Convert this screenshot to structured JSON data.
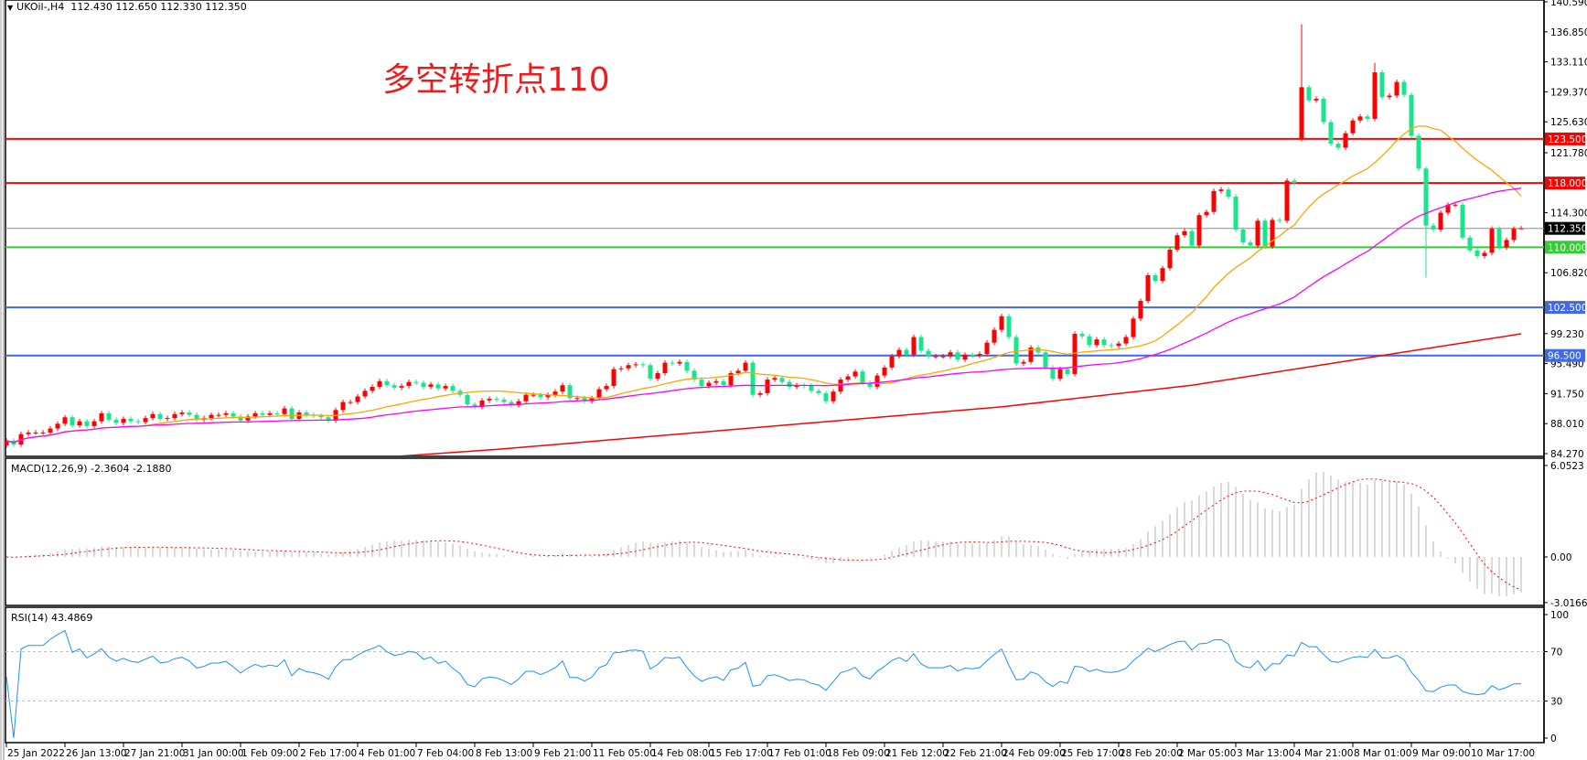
{
  "window": {
    "symbol_header": "UKOil-,H4",
    "ohlc": "112.430 112.650 112.330 112.350"
  },
  "annotation": "多空转折点110",
  "chart_data": {
    "type": "candlestick",
    "ylim": [
      84.27,
      140.59
    ],
    "price_ticks": [
      "140.590",
      "136.850",
      "133.110",
      "129.370",
      "125.630",
      "121.780",
      "114.300",
      "106.820",
      "99.230",
      "95.490",
      "91.750",
      "88.010",
      "84.270"
    ],
    "x_tick_labels": [
      "25 Jan 2022",
      "26 Jan 13:00",
      "27 Jan 21:00",
      "31 Jan 00:00",
      "1 Feb 09:00",
      "2 Feb 17:00",
      "4 Feb 01:00",
      "7 Feb 04:00",
      "8 Feb 13:00",
      "9 Feb 21:00",
      "11 Feb 05:00",
      "14 Feb 08:00",
      "15 Feb 17:00",
      "17 Feb 01:00",
      "18 Feb 09:00",
      "21 Feb 12:00",
      "22 Feb 21:00",
      "24 Feb 09:00",
      "25 Feb 17:00",
      "28 Feb 20:00",
      "2 Mar 05:00",
      "3 Mar 13:00",
      "4 Mar 21:00",
      "8 Mar 01:00",
      "9 Mar 09:00",
      "10 Mar 17:00"
    ],
    "bars_per_x_tick": 8,
    "up_color": "#ff0000",
    "down_color": "#19e68c",
    "first_open": 85.3,
    "closes": [
      85.9,
      85.4,
      86.7,
      86.9,
      86.9,
      86.9,
      87.4,
      88.0,
      88.8,
      87.8,
      88.3,
      87.7,
      88.3,
      89.3,
      88.5,
      88.1,
      88.6,
      88.3,
      88.2,
      88.7,
      89.2,
      88.6,
      88.7,
      89.2,
      89.4,
      89.1,
      88.5,
      88.7,
      89.1,
      89.1,
      89.3,
      88.9,
      88.4,
      88.9,
      89.3,
      89.1,
      89.3,
      89.2,
      89.9,
      88.6,
      89.4,
      89.1,
      89.0,
      88.8,
      88.4,
      89.7,
      90.7,
      90.7,
      91.4,
      92.1,
      92.6,
      93.3,
      92.8,
      92.5,
      92.7,
      93.2,
      93.1,
      92.6,
      92.9,
      92.4,
      92.7,
      92.1,
      91.6,
      90.4,
      90.1,
      90.9,
      91.1,
      91.0,
      90.7,
      90.3,
      90.8,
      91.6,
      91.6,
      91.3,
      91.6,
      92.0,
      92.8,
      91.2,
      91.2,
      90.8,
      91.2,
      92.3,
      92.7,
      94.8,
      94.9,
      95.3,
      95.4,
      95.3,
      93.6,
      94.3,
      95.6,
      95.5,
      95.7,
      94.6,
      93.5,
      92.7,
      93.1,
      93.3,
      92.8,
      94.3,
      94.6,
      95.6,
      91.6,
      91.8,
      93.5,
      93.7,
      93.2,
      92.6,
      92.8,
      92.7,
      92.1,
      91.8,
      90.8,
      92.0,
      93.5,
      93.9,
      94.5,
      93.1,
      92.6,
      94.0,
      95.0,
      96.4,
      97.2,
      96.6,
      98.8,
      97.1,
      96.4,
      96.4,
      96.4,
      96.9,
      96.0,
      96.6,
      96.5,
      96.7,
      98.1,
      99.7,
      101.4,
      98.8,
      95.5,
      95.7,
      97.5,
      96.9,
      95.0,
      93.6,
      94.8,
      94.2,
      99.2,
      98.9,
      97.8,
      98.5,
      97.8,
      97.7,
      98.0,
      98.8,
      101.1,
      103.3,
      106.5,
      105.8,
      107.4,
      109.7,
      111.5,
      112.0,
      110.2,
      114.0,
      114.4,
      117.0,
      117.2,
      116.3,
      112.2,
      110.6,
      110.2,
      113.3,
      110.1,
      113.4,
      113.3,
      118.3,
      118.0,
      129.95,
      128.3,
      128.5,
      125.6,
      122.9,
      122.4,
      124.2,
      125.8,
      126.3,
      126.0,
      131.8,
      128.7,
      128.9,
      130.6,
      129.0,
      123.9,
      119.8,
      112.7,
      112.2,
      114.3,
      115.3,
      115.3,
      111.2,
      109.6,
      108.9,
      109.3,
      112.3,
      110.0,
      110.9,
      112.3,
      112.35
    ],
    "open_overrides": [
      {
        "bar": 177,
        "open": 123.5
      }
    ],
    "wick_overrides": [
      {
        "bar": 177,
        "high": 137.8
      },
      {
        "bar": 187,
        "high": 133.0
      },
      {
        "bar": 194,
        "low": 106.2
      },
      {
        "bar": 207,
        "high": 112.65,
        "low": 112.33
      }
    ],
    "moving_averages": [
      {
        "period": 20,
        "color": "#ffa500"
      },
      {
        "period": 50,
        "color": "#ff00ff"
      }
    ],
    "long_ma": {
      "color": "#ff0000",
      "points": [
        {
          "bar": 53,
          "value": 83.9
        },
        {
          "bar": 67,
          "value": 84.8
        },
        {
          "bar": 136,
          "value": 90.1
        },
        {
          "bar": 162,
          "value": 92.8
        },
        {
          "bar": 188,
          "value": 96.5
        },
        {
          "bar": 207,
          "value": 99.2
        }
      ]
    },
    "levels": [
      {
        "value": 123.5,
        "label": "123.500",
        "color": "#ff0000"
      },
      {
        "value": 118.0,
        "label": "118.000",
        "color": "#ff0000"
      },
      {
        "value": 110.0,
        "label": "110.000",
        "color": "#32cd32"
      },
      {
        "value": 102.5,
        "label": "102.500",
        "color": "#4169e1"
      },
      {
        "value": 96.5,
        "label": "96.500",
        "color": "#4169e1"
      }
    ],
    "current_price": {
      "value": 112.35,
      "label": "112.350",
      "color": "#000000",
      "line_color": "#8c8c96"
    },
    "macd": {
      "label": "MACD(12,26,9) -2.3604 -2.1880",
      "fast": 12,
      "slow": 26,
      "signal": 9,
      "ylim": [
        -3.0166,
        6.0523
      ],
      "ticks": [
        "6.0523",
        "0.00",
        "-3.0166"
      ],
      "histogram_color": "#c0c0c0",
      "signal_color": "#ff0000"
    },
    "rsi": {
      "label": "RSI(14) 43.4869",
      "period": 14,
      "ylim": [
        0,
        100
      ],
      "levels": [
        70,
        30
      ],
      "ticks": [
        "100",
        "70",
        "30",
        "0"
      ],
      "color": "#1e90ff"
    }
  }
}
